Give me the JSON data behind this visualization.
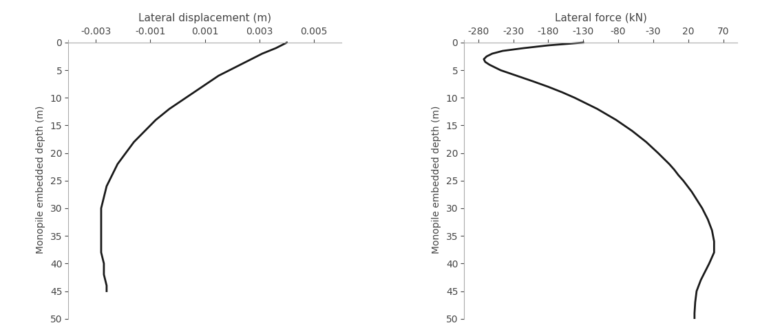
{
  "plot1": {
    "title": "Lateral displacement (m)",
    "ylabel": "Monopile embedded depth (m)",
    "xlim": [
      -0.004,
      0.006
    ],
    "ylim": [
      50,
      -0.5
    ],
    "xticks": [
      -0.003,
      -0.001,
      0.001,
      0.003,
      0.005
    ],
    "yticks": [
      0,
      5,
      10,
      15,
      20,
      25,
      30,
      35,
      40,
      45,
      50
    ],
    "depth": [
      0,
      1,
      2,
      3,
      4,
      5,
      6,
      7,
      8,
      9,
      10,
      12,
      14,
      16,
      18,
      20,
      22,
      24,
      26,
      28,
      30,
      32,
      34,
      36,
      38,
      40,
      42,
      44,
      45
    ],
    "displacement": [
      0.004,
      0.0036,
      0.0031,
      0.0027,
      0.0023,
      0.0019,
      0.0015,
      0.0012,
      0.0009,
      0.0006,
      0.0003,
      -0.0003,
      -0.0008,
      -0.0012,
      -0.0016,
      -0.0019,
      -0.0022,
      -0.0024,
      -0.0026,
      -0.0027,
      -0.0028,
      -0.0028,
      -0.0028,
      -0.0028,
      -0.0028,
      -0.0027,
      -0.0027,
      -0.0026,
      -0.0026
    ]
  },
  "plot2": {
    "title": "Lateral force (kN)",
    "ylabel": "Monopile embedded depth (m)",
    "xlim": [
      -300,
      90
    ],
    "ylim": [
      50,
      -0.5
    ],
    "xticks": [
      -280,
      -230,
      -180,
      -130,
      -80,
      -30,
      20,
      70
    ],
    "yticks": [
      0,
      5,
      10,
      15,
      20,
      25,
      30,
      35,
      40,
      45,
      50
    ],
    "depth": [
      0,
      0.5,
      1.0,
      1.5,
      2.0,
      2.5,
      3.0,
      3.5,
      4.0,
      5.0,
      6.0,
      7.0,
      8.0,
      9.0,
      10.0,
      12.0,
      14.0,
      16.0,
      18.0,
      20.0,
      21.0,
      22.0,
      23.0,
      24.0,
      25.0,
      26.0,
      27.0,
      28.0,
      30.0,
      32.0,
      34.0,
      36.0,
      38.0,
      40.0,
      41.0,
      42.0,
      43.0,
      44.0,
      45.0,
      47.0,
      49.0,
      50.0
    ],
    "force": [
      -130,
      -180,
      -215,
      -245,
      -260,
      -268,
      -272,
      -270,
      -264,
      -248,
      -225,
      -202,
      -180,
      -160,
      -142,
      -110,
      -83,
      -60,
      -40,
      -23,
      -15,
      -7,
      0,
      6,
      13,
      19,
      25,
      30,
      40,
      48,
      54,
      57,
      57,
      50,
      46,
      42,
      38,
      35,
      32,
      30,
      29,
      29
    ]
  },
  "line_color": "#1a1a1a",
  "line_width": 2.0,
  "background_color": "#ffffff",
  "tick_color": "#444444",
  "font_size": 10,
  "title_font_size": 11,
  "spine_color": "#aaaaaa"
}
